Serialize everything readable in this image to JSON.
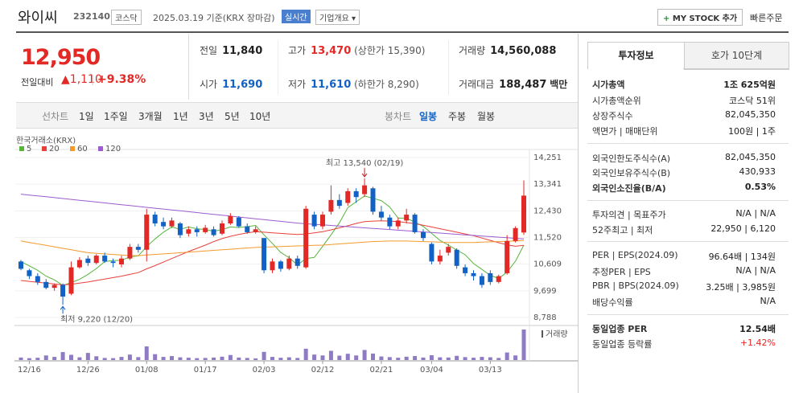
{
  "header": {
    "name": "와이씨",
    "code": "232140",
    "market": "코스닥",
    "date": "2025.03.19 기준(KRX 장마감)",
    "realtime": "실시간",
    "overview": "기업개요",
    "mystock": "MY STOCK 추가",
    "quick_order": "빠른주문"
  },
  "quote": {
    "price": "12,950",
    "change_label": "전일대비",
    "change": "1,110",
    "change_pct": "+9.38%",
    "table": [
      [
        {
          "label": "전일",
          "value": "11,840"
        },
        {
          "label": "고가",
          "value": "13,470",
          "note": "(상한가 15,390)"
        },
        {
          "label": "거래량",
          "value": "14,560,088"
        }
      ],
      [
        {
          "label": "시가",
          "value": "11,690"
        },
        {
          "label": "저가",
          "value": "11,610",
          "note": "(하한가 8,290)"
        },
        {
          "label": "거래대금",
          "value": "188,487",
          "unit": "백만"
        }
      ]
    ]
  },
  "periods": {
    "line_label": "선차트",
    "line": [
      "1일",
      "1주일",
      "3개월",
      "1년",
      "3년",
      "5년",
      "10년"
    ],
    "candle_label": "봉차트",
    "candle": [
      "일봉",
      "주봉",
      "월봉"
    ]
  },
  "chart_data": {
    "type": "candlestick",
    "source": "한국거래소(KRX)",
    "volume_label": "거래량",
    "up_color": "#e22926",
    "down_color": "#1261c4",
    "volume_color": "#8f7bc4",
    "ylim": [
      8788,
      14251
    ],
    "yticks": [
      {
        "value": 8788,
        "label": "8,788"
      },
      {
        "value": 9699,
        "label": "9,699"
      },
      {
        "value": 10609,
        "label": "10,609"
      },
      {
        "value": 11520,
        "label": "11,520"
      },
      {
        "value": 12430,
        "label": "12,430"
      },
      {
        "value": 13341,
        "label": "13,341"
      },
      {
        "value": 14251,
        "label": "14,251"
      }
    ],
    "grid": true,
    "annotations": {
      "high": "최고 13,540 (02/19)",
      "low": "최저 9,220 (12/20)"
    },
    "categories": [
      null,
      "12/16",
      null,
      null,
      null,
      null,
      null,
      null,
      "12/26",
      null,
      null,
      null,
      null,
      null,
      null,
      "01/08",
      null,
      null,
      null,
      null,
      null,
      null,
      "01/17",
      null,
      null,
      null,
      null,
      null,
      null,
      "02/03",
      null,
      null,
      null,
      null,
      null,
      null,
      "02/12",
      null,
      null,
      null,
      null,
      null,
      null,
      "02/21",
      null,
      null,
      null,
      null,
      null,
      "03/04",
      null,
      null,
      null,
      null,
      null,
      null,
      "03/13",
      null,
      null,
      null,
      null
    ],
    "open": [
      10700,
      10400,
      10200,
      10000,
      9800,
      9900,
      9600,
      10500,
      10800,
      10650,
      10900,
      10700,
      10600,
      10800,
      11200,
      11100,
      12300,
      12050,
      11900,
      12000,
      11650,
      11800,
      11700,
      11800,
      11650,
      12000,
      12200,
      11900,
      11700,
      11500,
      10400,
      10700,
      10450,
      10800,
      10500,
      12300,
      11900,
      12400,
      12800,
      12700,
      13100,
      13000,
      13200,
      12400,
      12200,
      11900,
      12100,
      12300,
      11700,
      11300,
      10700,
      11000,
      11100,
      10500,
      10300,
      10200,
      10300,
      10000,
      10300,
      11400,
      11690
    ],
    "high": [
      10750,
      10450,
      10300,
      10100,
      9950,
      9950,
      10700,
      10850,
      10900,
      10950,
      11000,
      10800,
      10900,
      11300,
      11300,
      12500,
      12400,
      12200,
      12200,
      12050,
      11900,
      11900,
      11950,
      11900,
      12100,
      12350,
      12250,
      12000,
      11900,
      11500,
      10800,
      10750,
      10900,
      10900,
      12600,
      12400,
      12400,
      13300,
      13000,
      13200,
      13200,
      13540,
      13250,
      12600,
      12300,
      12200,
      12500,
      12350,
      11800,
      11350,
      11100,
      11300,
      11150,
      10600,
      10400,
      10300,
      10400,
      10250,
      11600,
      11900,
      13470
    ],
    "low": [
      10400,
      10100,
      9900,
      9750,
      9700,
      9220,
      9550,
      10450,
      10550,
      10600,
      10650,
      10500,
      10500,
      10750,
      11000,
      10700,
      11900,
      11800,
      11850,
      11500,
      11550,
      11550,
      11650,
      11550,
      11600,
      11950,
      11850,
      11650,
      11650,
      10300,
      10300,
      10350,
      10400,
      10450,
      10450,
      11800,
      11800,
      12300,
      12500,
      12600,
      12700,
      12900,
      12300,
      12100,
      11800,
      11800,
      12000,
      11650,
      11400,
      10600,
      10600,
      10900,
      10450,
      10200,
      10050,
      9800,
      9900,
      9950,
      10250,
      11350,
      11610
    ],
    "close": [
      10450,
      10200,
      10000,
      9800,
      9900,
      9500,
      10500,
      10750,
      10650,
      10900,
      10700,
      10650,
      10800,
      11200,
      11100,
      12300,
      12000,
      11900,
      12100,
      11600,
      11800,
      11700,
      11850,
      11600,
      12000,
      12250,
      11900,
      11700,
      11800,
      10400,
      10700,
      10450,
      10800,
      10550,
      12500,
      11900,
      12300,
      12800,
      12600,
      13100,
      12900,
      13300,
      12400,
      12200,
      11900,
      12100,
      12300,
      11700,
      11500,
      10700,
      10900,
      11200,
      10550,
      10300,
      10200,
      9900,
      10000,
      10200,
      11400,
      11840,
      12950
    ],
    "volume": [
      1200000,
      900000,
      1100000,
      2200000,
      1500000,
      3800000,
      2500000,
      1300000,
      3400000,
      1800000,
      1000000,
      900000,
      1500000,
      2600000,
      1400000,
      6500000,
      2800000,
      1500000,
      1900000,
      1300000,
      1100000,
      900000,
      1000000,
      1200000,
      1600000,
      2400000,
      1200000,
      1000000,
      800000,
      3900000,
      1500000,
      1100000,
      1300000,
      1000000,
      5400000,
      2600000,
      2200000,
      4400000,
      2100000,
      3000000,
      2200000,
      4800000,
      3100000,
      1700000,
      1400000,
      1100000,
      1600000,
      1900000,
      1200000,
      2300000,
      1300000,
      1200000,
      2000000,
      1400000,
      1100000,
      1500000,
      1300000,
      1000000,
      3600000,
      2200000,
      14560088
    ],
    "series": [
      {
        "name": "5",
        "color": "#55b63a",
        "values": [
          10700,
          10550,
          10400,
          10200,
          10070,
          9880,
          9980,
          10090,
          10260,
          10460,
          10700,
          10730,
          10740,
          10860,
          10890,
          11210,
          11470,
          11700,
          11880,
          11800,
          11880,
          11820,
          11790,
          11730,
          11790,
          11880,
          11860,
          11890,
          11930,
          11610,
          11320,
          11010,
          10830,
          10580,
          10800,
          10840,
          11220,
          11610,
          12020,
          12540,
          12740,
          12940,
          12860,
          12780,
          12560,
          12180,
          12180,
          12040,
          11900,
          11660,
          11420,
          11260,
          11090,
          10930,
          10630,
          10430,
          10230,
          10120,
          10340,
          10710,
          11260
        ]
      },
      {
        "name": "20",
        "color": "#e8413a",
        "values": [
          10050,
          10020,
          9990,
          9960,
          9930,
          9900,
          9920,
          9960,
          10000,
          10050,
          10100,
          10150,
          10200,
          10260,
          10320,
          10450,
          10560,
          10680,
          10800,
          10920,
          11040,
          11150,
          11260,
          11380,
          11480,
          11560,
          11620,
          11680,
          11720,
          11700,
          11680,
          11660,
          11640,
          11620,
          11640,
          11680,
          11720,
          11780,
          11850,
          11920,
          12000,
          12060,
          12080,
          12090,
          12080,
          12060,
          12030,
          11990,
          11940,
          11880,
          11820,
          11760,
          11700,
          11640,
          11580,
          11500,
          11420,
          11340,
          11270,
          11220,
          11250
        ]
      },
      {
        "name": "60",
        "color": "#f49a2b",
        "values": [
          11400,
          11350,
          11300,
          11250,
          11200,
          11150,
          11100,
          11050,
          11000,
          10980,
          10960,
          10940,
          10920,
          10900,
          10900,
          10920,
          10940,
          10960,
          10980,
          11000,
          11020,
          11040,
          11060,
          11080,
          11100,
          11120,
          11140,
          11160,
          11180,
          11190,
          11200,
          11210,
          11220,
          11230,
          11240,
          11250,
          11260,
          11280,
          11300,
          11320,
          11340,
          11360,
          11380,
          11390,
          11400,
          11400,
          11400,
          11390,
          11380,
          11370,
          11360,
          11350,
          11350,
          11350,
          11350,
          11360,
          11370,
          11380,
          11390,
          11400,
          11420
        ]
      },
      {
        "name": "120",
        "color": "#9d5ccf",
        "values": [
          13000,
          12970,
          12940,
          12910,
          12880,
          12850,
          12820,
          12790,
          12760,
          12730,
          12700,
          12670,
          12640,
          12610,
          12580,
          12550,
          12520,
          12490,
          12460,
          12430,
          12400,
          12370,
          12340,
          12310,
          12280,
          12250,
          12220,
          12190,
          12160,
          12130,
          12100,
          12070,
          12040,
          12010,
          11990,
          11970,
          11950,
          11930,
          11910,
          11890,
          11870,
          11850,
          11830,
          11810,
          11790,
          11770,
          11750,
          11730,
          11710,
          11690,
          11670,
          11650,
          11630,
          11610,
          11590,
          11570,
          11550,
          11530,
          11510,
          11490,
          11470
        ]
      }
    ]
  },
  "info": {
    "tabs": [
      "투자정보",
      "호가 10단계"
    ],
    "groups": [
      [
        {
          "label": "시가총액",
          "value": "1조 625억원"
        },
        {
          "label": "시가총액순위",
          "value": "코스닥 51위"
        },
        {
          "label": "상장주식수",
          "value": "82,045,350"
        },
        {
          "label": "액면가 | 매매단위",
          "value": "100원 | 1주"
        }
      ],
      [
        {
          "label": "외국인한도주식수(A)",
          "value": "82,045,350"
        },
        {
          "label": "외국인보유주식수(B)",
          "value": "430,933"
        },
        {
          "label": "외국인소진율(B/A)",
          "value": "0.53%"
        }
      ],
      [
        {
          "label": "투자의견 | 목표주가",
          "value": "N/A | N/A"
        },
        {
          "label": "52주최고 | 최저",
          "value": "22,950 | 6,120"
        }
      ],
      [
        {
          "label": "PER | EPS(2024.09)",
          "value": "96.64배 | 134원"
        },
        {
          "label": "추정PER | EPS",
          "value": "N/A | N/A"
        },
        {
          "label": "PBR | BPS(2024.09)",
          "value": "3.25배 | 3,985원"
        },
        {
          "label": "배당수익률",
          "value": "N/A"
        }
      ],
      [
        {
          "label": "동일업종 PER",
          "value": "12.54배"
        },
        {
          "label": "동일업종 등락률",
          "value": "+1.42%"
        }
      ]
    ]
  }
}
